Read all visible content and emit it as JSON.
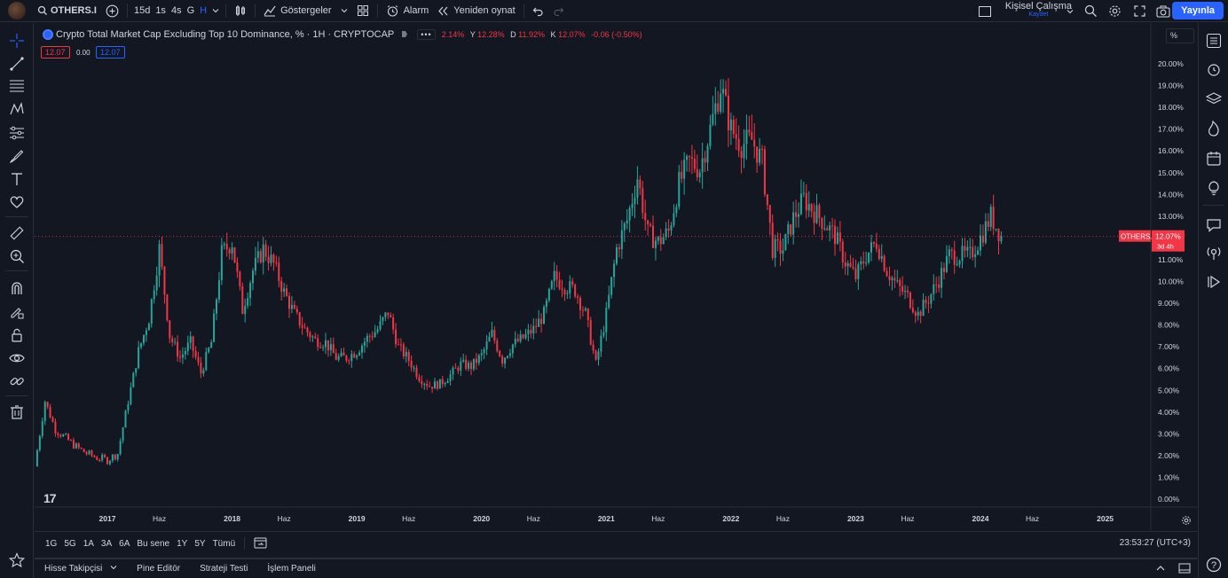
{
  "topbar": {
    "symbol": "OTHERS.I",
    "intervals": [
      "15d",
      "1s",
      "4s",
      "G",
      "H"
    ],
    "active_interval": "H",
    "indicators_label": "Göstergeler",
    "alarm_label": "Alarm",
    "replay_label": "Yeniden oynat",
    "layout_name": "Kişisel Çalışma",
    "layout_sub": "Kaydet",
    "publish_label": "Yayınla"
  },
  "legend": {
    "title": "Crypto Total Market Cap Excluding Top 10 Dominance, %",
    "interval": "· 1H · CRYPTOCAP",
    "ohlc_prefix": "2.14%",
    "high_label": "Y",
    "high_value": "12.28%",
    "low_label": "D",
    "low_value": "11.92%",
    "close_label": "K",
    "close_value": "12.07%",
    "change": "-0.06 (-0.50%)",
    "badge_sell": "12.07",
    "badge_spread": "0.00",
    "badge_buy": "12.07"
  },
  "price_axis": {
    "unit_toggle": "%",
    "last_symbol": "OTHERS.D",
    "last_price": "12.07%",
    "countdown": "3d 4h"
  },
  "range_bar": {
    "ranges": [
      "1G",
      "5G",
      "1A",
      "3A",
      "6A",
      "Bu sene",
      "1Y",
      "5Y",
      "Tümü"
    ],
    "clock": "23:53:27 (UTC+3)"
  },
  "bottom_tabs": [
    "Hisse Takipçisi",
    "Pine Editör",
    "Strateji Testi",
    "İşlem Paneli"
  ],
  "colors": {
    "up": "#26a69a",
    "down": "#f23645",
    "accent": "#2962ff",
    "bg": "#131722"
  },
  "chart_data": {
    "type": "candlestick",
    "yaxis_unit": "%",
    "ylim": [
      0,
      20
    ],
    "yticks": [
      "20.00%",
      "19.00%",
      "18.00%",
      "17.00%",
      "16.00%",
      "15.00%",
      "14.00%",
      "13.00%",
      "12.00%",
      "11.00%",
      "10.00%",
      "9.00%",
      "8.00%",
      "7.00%",
      "6.00%",
      "5.00%",
      "4.00%",
      "3.00%",
      "2.00%",
      "1.00%",
      "0.00%"
    ],
    "xticks": [
      "2017",
      "Haz",
      "2018",
      "Haz",
      "2019",
      "Haz",
      "2020",
      "Haz",
      "2021",
      "Haz",
      "2022",
      "Haz",
      "2023",
      "Haz",
      "2024",
      "Haz",
      "2025"
    ],
    "xlim": [
      "2016-06",
      "2025-03"
    ],
    "series": [
      {
        "points": [
          [
            "2016-06",
            1.5
          ],
          [
            "2016-07",
            4.5
          ],
          [
            "2016-08",
            3.2
          ],
          [
            "2016-09",
            2.8
          ],
          [
            "2016-10",
            2.4
          ],
          [
            "2016-11",
            2.1
          ],
          [
            "2016-12",
            1.9
          ],
          [
            "2017-01",
            1.8
          ],
          [
            "2017-02",
            2.1
          ],
          [
            "2017-03",
            4.5
          ],
          [
            "2017-04",
            6.8
          ],
          [
            "2017-05",
            8.3
          ],
          [
            "2017-06",
            11.5
          ],
          [
            "2017-07",
            7.5
          ],
          [
            "2017-08",
            6.5
          ],
          [
            "2017-09",
            7.2
          ],
          [
            "2017-10",
            5.8
          ],
          [
            "2017-11",
            7.2
          ],
          [
            "2017-12",
            11.3
          ],
          [
            "2018-01",
            11.8
          ],
          [
            "2018-02",
            8.7
          ],
          [
            "2018-03",
            10.5
          ],
          [
            "2018-04",
            11.5
          ],
          [
            "2018-05",
            10.8
          ],
          [
            "2018-06",
            9.5
          ],
          [
            "2018-07",
            8.5
          ],
          [
            "2018-08",
            7.8
          ],
          [
            "2018-09",
            7.3
          ],
          [
            "2018-10",
            7.2
          ],
          [
            "2018-11",
            6.5
          ],
          [
            "2018-12",
            6.5
          ],
          [
            "2019-01",
            6.8
          ],
          [
            "2019-02",
            7.4
          ],
          [
            "2019-03",
            7.8
          ],
          [
            "2019-04",
            8.6
          ],
          [
            "2019-05",
            7.0
          ],
          [
            "2019-06",
            6.4
          ],
          [
            "2019-07",
            5.6
          ],
          [
            "2019-08",
            5.2
          ],
          [
            "2019-09",
            5.3
          ],
          [
            "2019-10",
            5.7
          ],
          [
            "2019-11",
            6.2
          ],
          [
            "2019-12",
            6.1
          ],
          [
            "2020-01",
            6.6
          ],
          [
            "2020-02",
            7.6
          ],
          [
            "2020-03",
            6.4
          ],
          [
            "2020-04",
            7.1
          ],
          [
            "2020-05",
            7.4
          ],
          [
            "2020-06",
            7.8
          ],
          [
            "2020-07",
            8.5
          ],
          [
            "2020-08",
            10.2
          ],
          [
            "2020-09",
            9.8
          ],
          [
            "2020-10",
            9.6
          ],
          [
            "2020-11",
            8.5
          ],
          [
            "2020-12",
            6.2
          ],
          [
            "2021-01",
            8.5
          ],
          [
            "2021-02",
            11.5
          ],
          [
            "2021-03",
            12.8
          ],
          [
            "2021-04",
            14.8
          ],
          [
            "2021-05",
            12.2
          ],
          [
            "2021-06",
            11.8
          ],
          [
            "2021-07",
            12.3
          ],
          [
            "2021-08",
            14.5
          ],
          [
            "2021-09",
            15.5
          ],
          [
            "2021-10",
            15.2
          ],
          [
            "2021-11",
            17.0
          ],
          [
            "2021-12",
            19.0
          ],
          [
            "2022-01",
            17.0
          ],
          [
            "2022-02",
            16.3
          ],
          [
            "2022-03",
            16.5
          ],
          [
            "2022-04",
            15.5
          ],
          [
            "2022-05",
            11.5
          ],
          [
            "2022-06",
            11.5
          ],
          [
            "2022-07",
            12.9
          ],
          [
            "2022-08",
            13.8
          ],
          [
            "2022-09",
            13.2
          ],
          [
            "2022-10",
            12.7
          ],
          [
            "2022-11",
            12.1
          ],
          [
            "2022-12",
            10.9
          ],
          [
            "2023-01",
            10.2
          ],
          [
            "2023-02",
            11.2
          ],
          [
            "2023-03",
            11.8
          ],
          [
            "2023-04",
            10.5
          ],
          [
            "2023-05",
            9.8
          ],
          [
            "2023-06",
            9.3
          ],
          [
            "2023-07",
            8.5
          ],
          [
            "2023-08",
            9.2
          ],
          [
            "2023-09",
            10.1
          ],
          [
            "2023-10",
            11.2
          ],
          [
            "2023-11",
            11.2
          ],
          [
            "2023-12",
            11.2
          ],
          [
            "2024-01",
            12.0
          ],
          [
            "2024-02",
            13.0
          ],
          [
            "2024-03",
            12.07
          ]
        ]
      }
    ]
  }
}
